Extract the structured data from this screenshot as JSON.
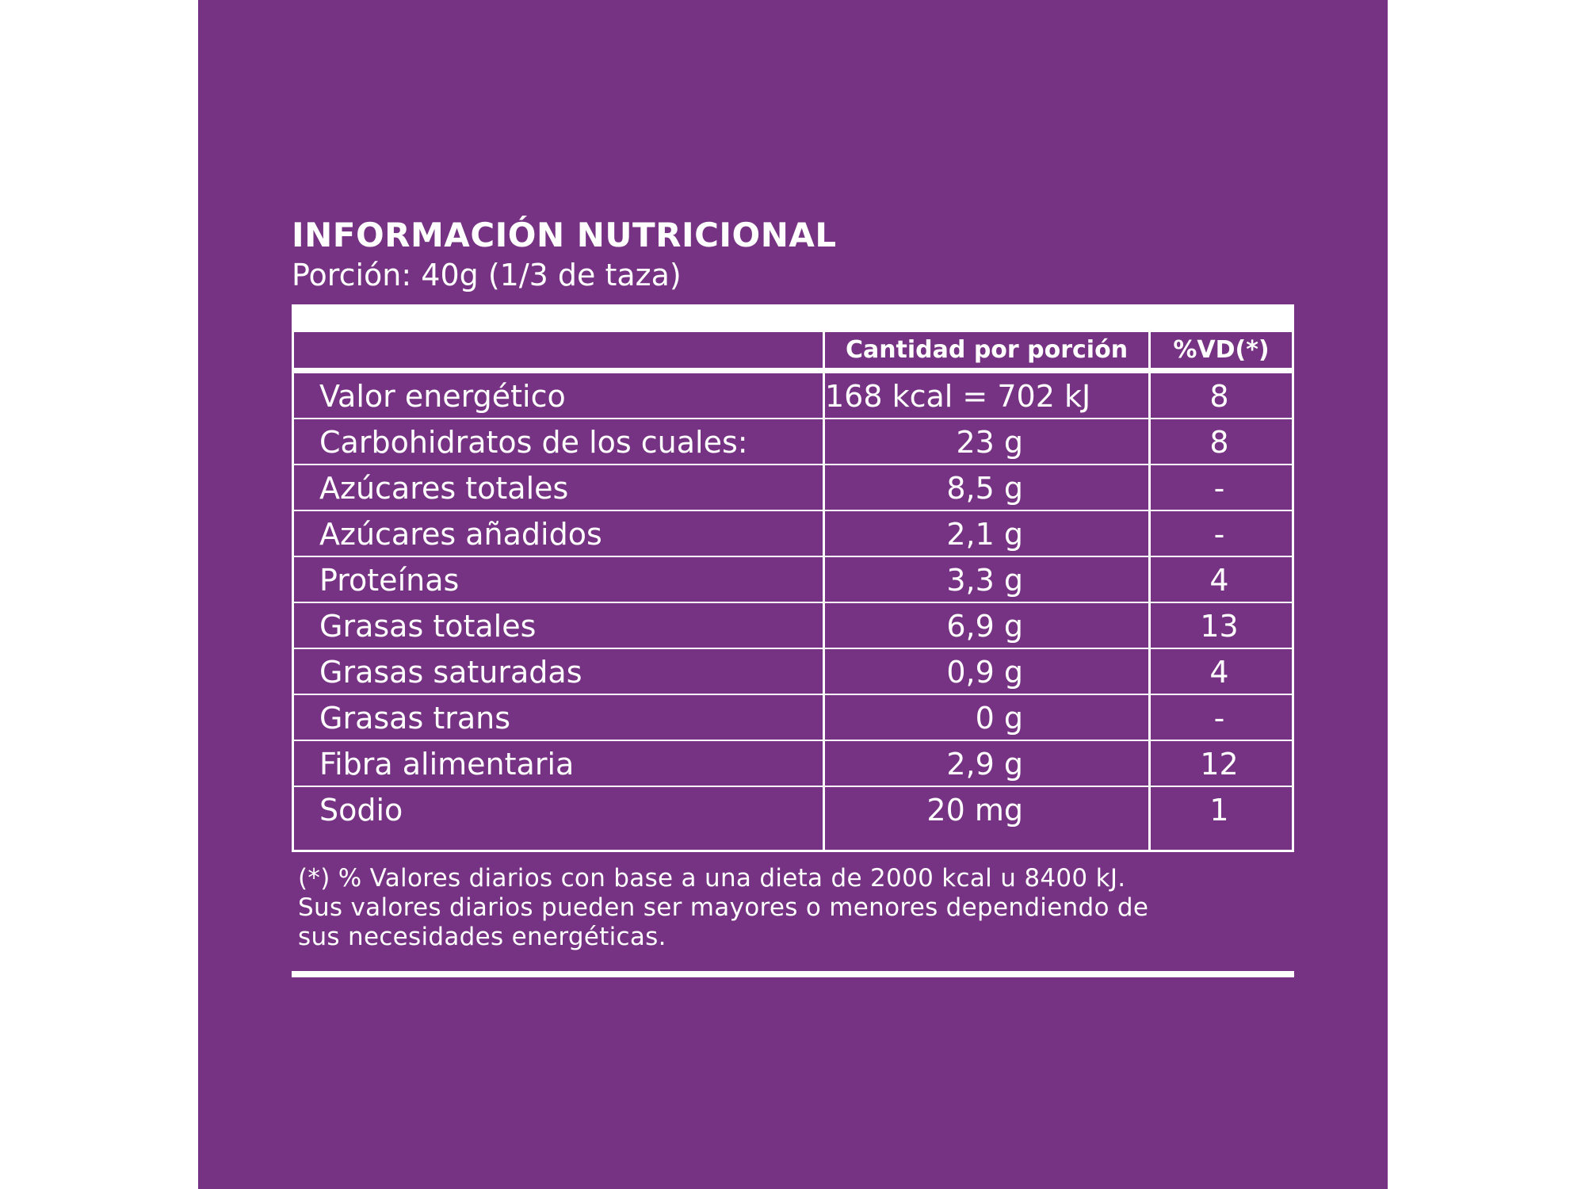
{
  "label": {
    "title": "INFORMACIÓN NUTRICIONAL",
    "portion": "Porción: 40g (1/3 de taza)"
  },
  "table": {
    "headers": {
      "nutrient": "",
      "amount": "Cantidad por porción",
      "daily_value": "%VD(*)"
    },
    "rows": [
      {
        "name": "Valor energético",
        "amount": "168 kcal = 702 kJ",
        "vd": "8"
      },
      {
        "name": "Carbohidratos de los cuales:",
        "amount": "23 g",
        "vd": "8"
      },
      {
        "name": "Azúcares totales",
        "amount": "8,5 g",
        "vd": "-"
      },
      {
        "name": "Azúcares añadidos",
        "amount": "2,1 g",
        "vd": "-"
      },
      {
        "name": "Proteínas",
        "amount": "3,3 g",
        "vd": "4"
      },
      {
        "name": "Grasas totales",
        "amount": "6,9 g",
        "vd": "13"
      },
      {
        "name": "Grasas saturadas",
        "amount": "0,9 g",
        "vd": "4"
      },
      {
        "name": "Grasas trans",
        "amount": "0 g",
        "vd": "-"
      },
      {
        "name": "Fibra alimentaria",
        "amount": "2,9 g",
        "vd": "12"
      },
      {
        "name": "Sodio",
        "amount": "20 mg",
        "vd": "1"
      }
    ]
  },
  "footnote": {
    "lines": [
      "(*) % Valores diarios con base a una dieta de 2000 kcal u 8400 kJ.",
      "Sus valores diarios pueden ser mayores o menores dependiendo de",
      "sus necesidades energéticas."
    ]
  },
  "colors": {
    "background": "#773383",
    "text": "#ffffff"
  }
}
